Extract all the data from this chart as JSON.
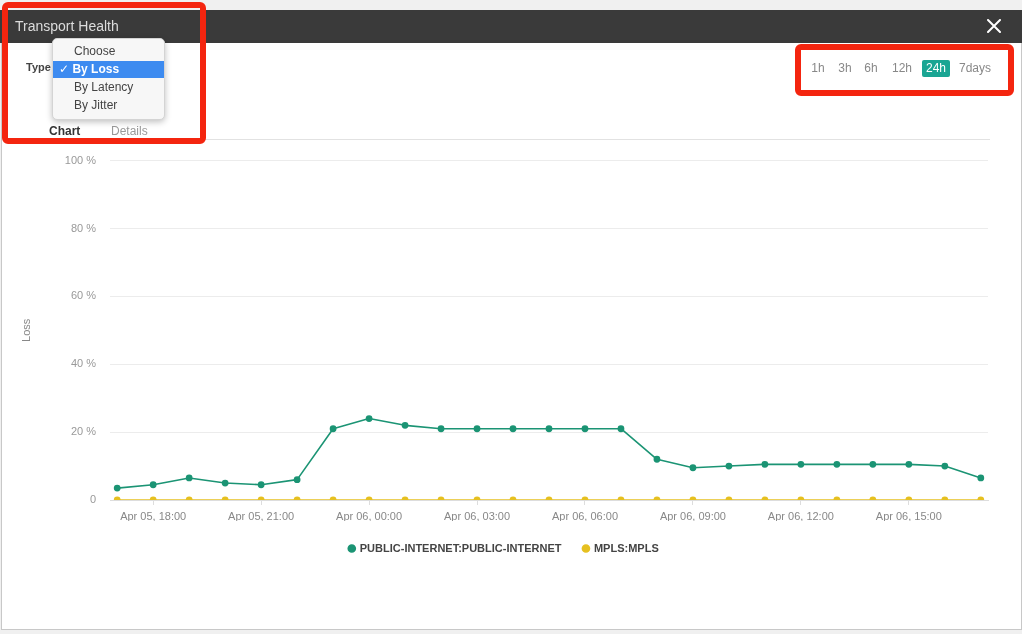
{
  "chart_data": {
    "type": "line",
    "title": "Transport Health",
    "ylabel": "Loss",
    "x": [
      "--04-05T17:00",
      "--04-05T18:00",
      "--04-05T19:00",
      "--04-05T20:00",
      "--04-05T21:00",
      "--04-05T22:00",
      "--04-05T23:00",
      "--04-06T00:00",
      "--04-06T01:00",
      "--04-06T02:00",
      "--04-06T03:00",
      "--04-06T04:00",
      "--04-06T05:00",
      "--04-06T06:00",
      "--04-06T07:00",
      "--04-06T08:00",
      "--04-06T09:00",
      "--04-06T10:00",
      "--04-06T11:00",
      "--04-06T12:00",
      "--04-06T13:00",
      "--04-06T14:00",
      "--04-06T15:00",
      "--04-06T16:00",
      "--04-06T17:00"
    ],
    "series": [
      {
        "name": "PUBLIC-INTERNET:PUBLIC-INTERNET",
        "color": "#1b9474",
        "values": [
          3.5,
          4.5,
          6.5,
          5,
          4.5,
          6,
          21,
          24,
          22,
          21,
          21,
          21,
          21,
          21,
          21,
          12,
          9.5,
          10,
          10.5,
          10.5,
          10.5,
          10.5,
          10.5,
          10,
          6.5
        ]
      },
      {
        "name": "MPLS:MPLS",
        "color": "#e6c020",
        "values": [
          0,
          0,
          0,
          0,
          0,
          0,
          0,
          0,
          0,
          0,
          0,
          0,
          0,
          0,
          0,
          0,
          0,
          0,
          0,
          0,
          0,
          0,
          0,
          0,
          0
        ]
      }
    ],
    "xlim": [
      "--04-05T16:48",
      "--04-06T17:12"
    ],
    "xticks": [
      {
        "value": "--04-05T18:00",
        "label": "Apr 05, 18:00"
      },
      {
        "value": "--04-05T21:00",
        "label": "Apr 05, 21:00"
      },
      {
        "value": "--04-06T00:00",
        "label": "Apr 06, 00:00"
      },
      {
        "value": "--04-06T03:00",
        "label": "Apr 06, 03:00"
      },
      {
        "value": "--04-06T06:00",
        "label": "Apr 06, 06:00"
      },
      {
        "value": "--04-06T09:00",
        "label": "Apr 06, 09:00"
      },
      {
        "value": "--04-06T12:00",
        "label": "Apr 06, 12:00"
      },
      {
        "value": "--04-06T15:00",
        "label": "Apr 06, 15:00"
      }
    ],
    "ylim": [
      0,
      100
    ],
    "yticks": [
      0,
      {
        "value": 20,
        "label": "20 %"
      },
      {
        "value": 40,
        "label": "40 %"
      },
      {
        "value": 60,
        "label": "60 %"
      },
      {
        "value": 80,
        "label": "80 %"
      },
      {
        "value": 100,
        "label": "100 %"
      }
    ],
    "grid": "y",
    "legend": "bottom",
    "marker": "circle",
    "line_style": "solid",
    "annotations": [
      "Type",
      "Choose",
      "✓ By Loss",
      "By Latency",
      "By Jitter",
      "Chart",
      "Details",
      "1h",
      "3h",
      "6h",
      "12h",
      "24h",
      "7days"
    ]
  }
}
